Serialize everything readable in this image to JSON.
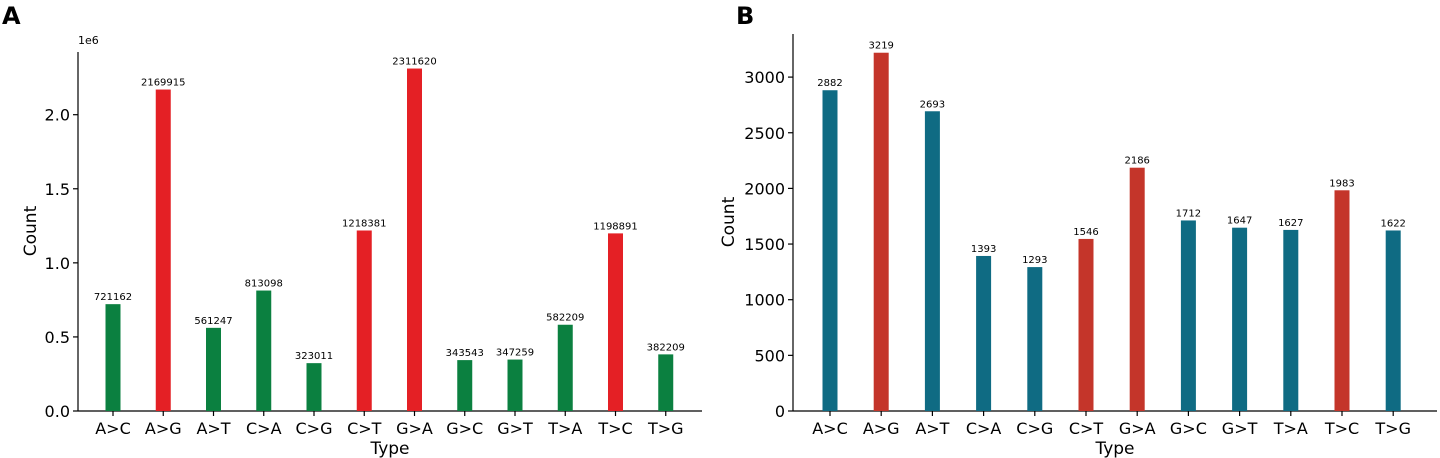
{
  "chart_data": [
    {
      "panel_label": "A",
      "type": "bar",
      "title": "",
      "xlabel": "Type",
      "ylabel": "Count",
      "offset_label": "1e6",
      "scale": 1000000,
      "categories": [
        "A>C",
        "A>G",
        "A>T",
        "C>A",
        "C>G",
        "C>T",
        "G>A",
        "G>C",
        "G>T",
        "T>A",
        "T>C",
        "T>G"
      ],
      "values": [
        721162,
        2169915,
        561247,
        813098,
        323011,
        1218381,
        2311620,
        343543,
        347259,
        582209,
        1198891,
        382209
      ],
      "value_labels": [
        "721162",
        "2169915",
        "561247",
        "813098",
        "323011",
        "1218381",
        "2311620",
        "343543",
        "347259",
        "582209",
        "1198891",
        "382209"
      ],
      "colors": [
        "#0b8040",
        "#e42025",
        "#0b8040",
        "#0b8040",
        "#0b8040",
        "#e42025",
        "#e42025",
        "#0b8040",
        "#0b8040",
        "#0b8040",
        "#e42025",
        "#0b8040"
      ],
      "yticks": [
        0,
        0.5,
        1.0,
        1.5,
        2.0
      ],
      "ytick_labels": [
        "0.0",
        "0.5",
        "1.0",
        "1.5",
        "2.0"
      ],
      "ylim": [
        0,
        2.42
      ],
      "grid": false
    },
    {
      "panel_label": "B",
      "type": "bar",
      "title": "",
      "xlabel": "Type",
      "ylabel": "Count",
      "offset_label": "",
      "scale": 1,
      "categories": [
        "A>C",
        "A>G",
        "A>T",
        "C>A",
        "C>G",
        "C>T",
        "G>A",
        "G>C",
        "G>T",
        "T>A",
        "T>C",
        "T>G"
      ],
      "values": [
        2882,
        3219,
        2693,
        1393,
        1293,
        1546,
        2186,
        1712,
        1647,
        1627,
        1983,
        1622
      ],
      "value_labels": [
        "2882",
        "3219",
        "2693",
        "1393",
        "1293",
        "1546",
        "2186",
        "1712",
        "1647",
        "1627",
        "1983",
        "1622"
      ],
      "colors": [
        "#0f6b83",
        "#c4352a",
        "#0f6b83",
        "#0f6b83",
        "#0f6b83",
        "#c4352a",
        "#c4352a",
        "#0f6b83",
        "#0f6b83",
        "#0f6b83",
        "#c4352a",
        "#0f6b83"
      ],
      "yticks": [
        0,
        500,
        1000,
        1500,
        2000,
        2500,
        3000
      ],
      "ytick_labels": [
        "0",
        "500",
        "1000",
        "1500",
        "2000",
        "2500",
        "3000"
      ],
      "ylim": [
        0,
        3400
      ],
      "grid": false
    }
  ]
}
